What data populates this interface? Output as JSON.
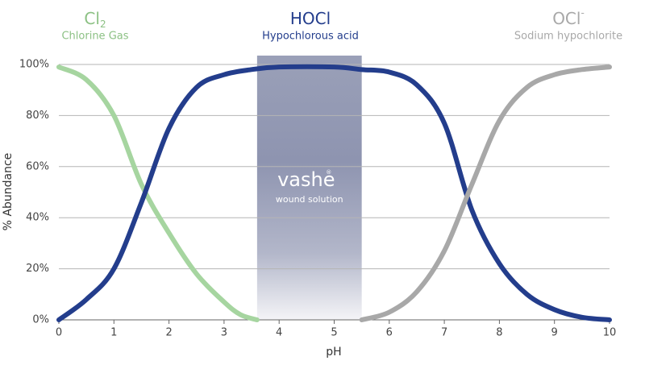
{
  "chart_data": {
    "type": "line",
    "xlabel": "pH",
    "ylabel": "% Abundance",
    "xlim": [
      0,
      10
    ],
    "xticks": [
      0,
      1,
      2,
      3,
      4,
      5,
      6,
      7,
      8,
      9,
      10
    ],
    "ylim": [
      0,
      100
    ],
    "yticks": [
      {
        "value": 0,
        "label": "0%"
      },
      {
        "value": 20,
        "label": "20%"
      },
      {
        "value": 40,
        "label": "40%"
      },
      {
        "value": 60,
        "label": "60%"
      },
      {
        "value": 80,
        "label": "80%"
      },
      {
        "value": 100,
        "label": "100%"
      }
    ],
    "grid": true,
    "band": {
      "xrange": [
        3.6,
        5.5
      ],
      "title": "vashe",
      "mark": "®",
      "subtitle": "wound solution"
    },
    "series": [
      {
        "name": "Cl",
        "subscript": "2",
        "description": "Chlorine Gas",
        "color": "#a6d5a0",
        "x": [
          0,
          0.5,
          1,
          1.5,
          2,
          2.5,
          3,
          3.3,
          3.6
        ],
        "values": [
          99,
          94,
          80,
          53,
          34,
          18,
          7,
          2,
          0
        ]
      },
      {
        "name": "HOCl",
        "description": "Hypochlorous acid",
        "color": "#233d8c",
        "x": [
          0,
          0.5,
          1,
          1.5,
          2,
          2.5,
          3,
          3.5,
          4,
          5,
          5.5,
          6,
          6.5,
          7,
          7.5,
          8,
          8.5,
          9,
          9.5,
          10
        ],
        "values": [
          0,
          8,
          20,
          46,
          75,
          91,
          96,
          98,
          99,
          99,
          98,
          97,
          92,
          77,
          43,
          22,
          10,
          4,
          1,
          0
        ]
      },
      {
        "name": "OCl",
        "superscript": "-",
        "description": "Sodium hypochlorite",
        "color": "#a8a8a8",
        "x": [
          5.5,
          6,
          6.5,
          7,
          7.5,
          8,
          8.5,
          9,
          9.5,
          10
        ],
        "values": [
          0,
          3,
          11,
          27,
          53,
          78,
          91,
          96,
          98,
          99
        ]
      }
    ]
  }
}
